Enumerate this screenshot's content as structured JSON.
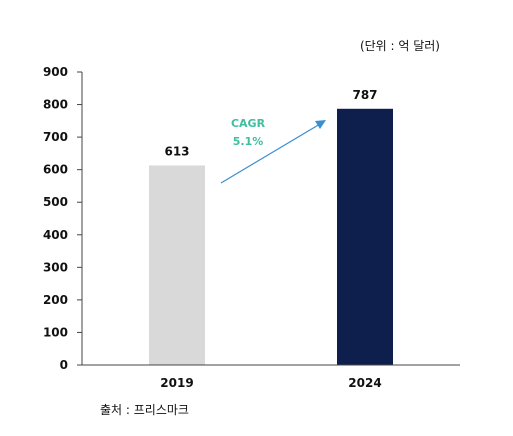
{
  "unit_note": "(단위 : 억 달러)",
  "source_note": "출처 : 프리스마크",
  "annotation": {
    "label": "CAGR",
    "value": "5.1%",
    "color": "#3fbf9f",
    "arrow_color": "#3a8fd0"
  },
  "colors": {
    "bar_2019": "#d9d9d9",
    "bar_2024": "#0e1f4d",
    "axis": "#444444"
  },
  "chart_data": {
    "type": "bar",
    "categories": [
      "2019",
      "2024"
    ],
    "values": [
      613,
      787
    ],
    "data_labels": [
      "613",
      "787"
    ],
    "ylim": [
      0,
      900
    ],
    "yticks": [
      0,
      100,
      200,
      300,
      400,
      500,
      600,
      700,
      800,
      900
    ],
    "grid": false,
    "legend": "none"
  }
}
